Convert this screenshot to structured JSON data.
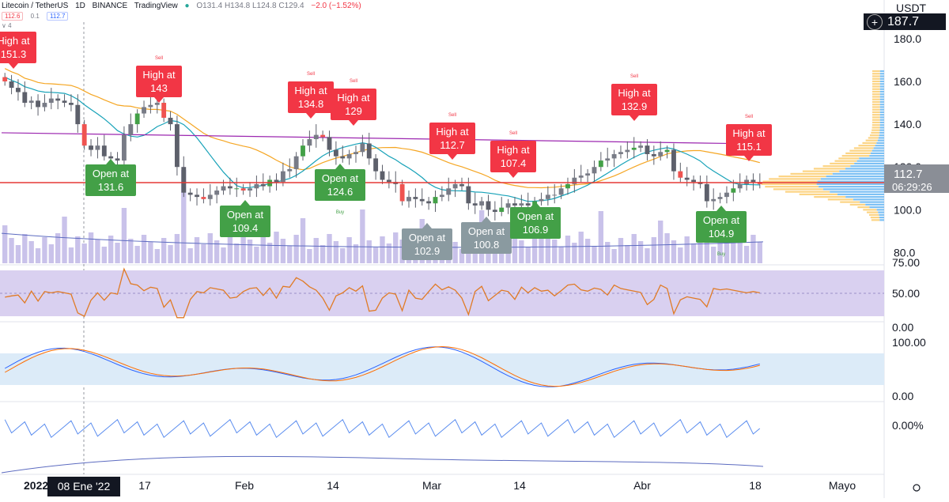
{
  "header": {
    "symbol": "Litecoin / TetherUS",
    "interval": "1D",
    "exchange": "BINANCE",
    "platform": "TradingView",
    "ohlc": "O131.4 H134.8 L124.8 C129.4",
    "change": "−2.0 (−1.52%)",
    "indicator_values": [
      "112.6",
      "0.1",
      "112.7"
    ],
    "row3": "∨ 4",
    "currency": "USDT",
    "top_price": "187.7"
  },
  "current": {
    "price_label": "112.7",
    "countdown": "06:29:26"
  },
  "price_axis": {
    "labels": [
      "180.0",
      "160.0",
      "140.0",
      "120.0",
      "100.0",
      "80.0"
    ],
    "values": [
      180,
      160,
      140,
      120,
      100,
      80
    ]
  },
  "rsi_axis": [
    "75.00",
    "50.00",
    "0.00"
  ],
  "stoch_axis": [
    "100.00",
    "0.00"
  ],
  "pct_axis": "0.00%",
  "time_axis": {
    "labels": [
      "2022",
      "17",
      "Feb",
      "14",
      "Mar",
      "14",
      "Abr",
      "18",
      "Mayo"
    ],
    "bold": "2022",
    "cursor_label": "08 Ene '22"
  },
  "signals": [
    {
      "type": "high",
      "line1": "High at",
      "line2": "151.3",
      "tag": ""
    },
    {
      "type": "high",
      "line1": "High at",
      "line2": "143",
      "tag": "Sell"
    },
    {
      "type": "high",
      "line1": "High at",
      "line2": "134.8",
      "tag": "Sell"
    },
    {
      "type": "high",
      "line1": "High at",
      "line2": "129",
      "tag": "Sell"
    },
    {
      "type": "high",
      "line1": "High at",
      "line2": "112.7",
      "tag": "Sell"
    },
    {
      "type": "high",
      "line1": "High at",
      "line2": "107.4",
      "tag": "Sell"
    },
    {
      "type": "high",
      "line1": "High at",
      "line2": "132.9",
      "tag": "Sell"
    },
    {
      "type": "high",
      "line1": "High at",
      "line2": "115.1",
      "tag": "Sell"
    },
    {
      "type": "open",
      "line1": "Open at",
      "line2": "131.6",
      "tag": ""
    },
    {
      "type": "open",
      "line1": "Open at",
      "line2": "109.4",
      "tag": ""
    },
    {
      "type": "open",
      "line1": "Open at",
      "line2": "124.6",
      "tag": "Buy"
    },
    {
      "type": "open_grey",
      "line1": "Open at",
      "line2": "102.9",
      "tag": ""
    },
    {
      "type": "open_grey",
      "line1": "Open at",
      "line2": "100.8",
      "tag": ""
    },
    {
      "type": "open",
      "line1": "Open at",
      "line2": "106.9",
      "tag": ""
    },
    {
      "type": "open",
      "line1": "Open at",
      "line2": "104.9",
      "tag": "Buy"
    },
    {
      "type": "open",
      "line1": "Open at",
      "line2": "100.8",
      "tag": ""
    }
  ],
  "colors": {
    "up": "#26a69a",
    "down": "#ef5350",
    "sell": "#f23645",
    "buy": "#43a047",
    "grey": "#8a9aa0",
    "ma_fast": "#17a2b8",
    "ma_slow": "#f5a623",
    "ma_long": "#9c27b0",
    "volume": "#c9c2ea",
    "rsi_band": "#d9d0f0",
    "rsi_line": "#e07b26",
    "stoch_band": "#dcebf8",
    "current": "#e53935"
  },
  "chart_data": {
    "type": "candlestick",
    "close": [
      160,
      157,
      155,
      150,
      151,
      148,
      150,
      152,
      151,
      150,
      149,
      140,
      130,
      128,
      130,
      125,
      124,
      123,
      135,
      140,
      145,
      148,
      149,
      150,
      143,
      140,
      120,
      108,
      107,
      106,
      105,
      107,
      109,
      111,
      110,
      110,
      109,
      110,
      112,
      111,
      114,
      113,
      118,
      119,
      125,
      130,
      133,
      135,
      134,
      128,
      125,
      124,
      126,
      127,
      131,
      124,
      118,
      114,
      113,
      112,
      104,
      106,
      105,
      104,
      103,
      106,
      107,
      110,
      112,
      111,
      103,
      102,
      104,
      100,
      99,
      101,
      103,
      102,
      103,
      102,
      104,
      105,
      107,
      107,
      110,
      112,
      115,
      116,
      117,
      120,
      123,
      124,
      126,
      127,
      128,
      129,
      130,
      126,
      125,
      127,
      128,
      118,
      115,
      114,
      113,
      112,
      104,
      105,
      106,
      108,
      110,
      112,
      114,
      113,
      112
    ],
    "ohlc_summary": {
      "open": 131.4,
      "high": 134.8,
      "low": 124.8,
      "close": 129.4,
      "change": -2.0,
      "change_pct": -1.52
    },
    "last_price": 112.7,
    "ylim": [
      75,
      187.7
    ],
    "rsi_ylim": [
      0,
      100
    ],
    "stoch_ylim": [
      0,
      100
    ]
  }
}
